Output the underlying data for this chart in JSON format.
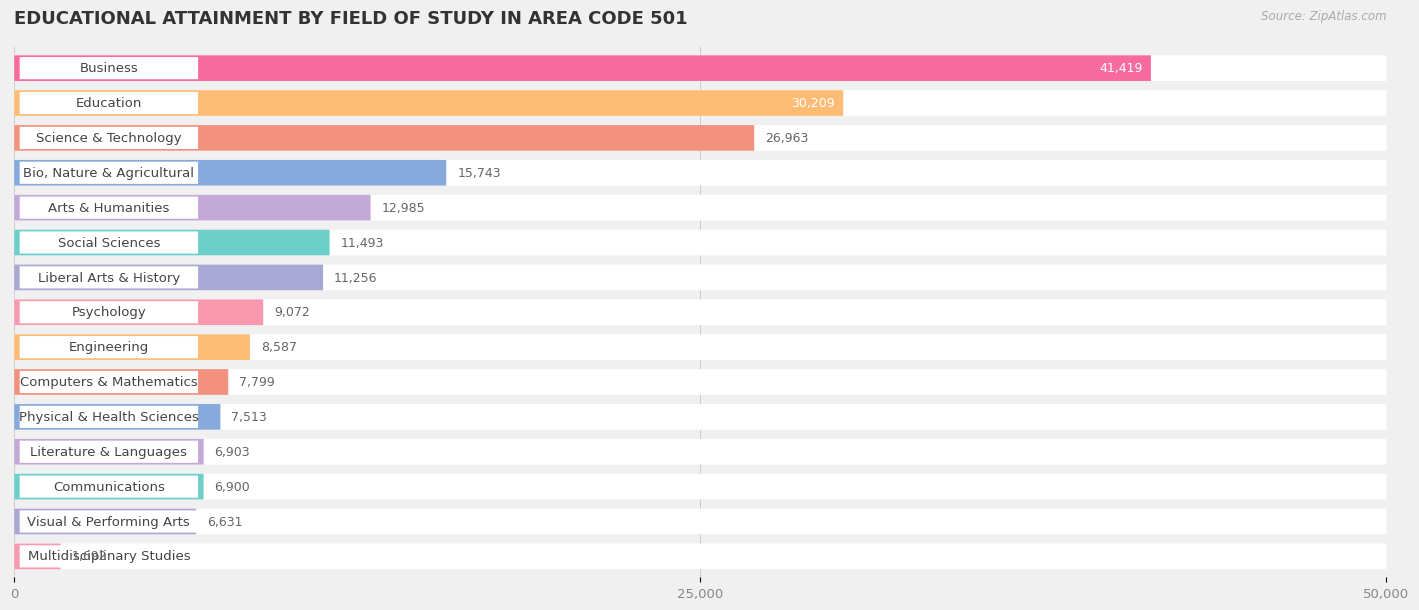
{
  "title": "EDUCATIONAL ATTAINMENT BY FIELD OF STUDY IN AREA CODE 501",
  "source": "Source: ZipAtlas.com",
  "categories": [
    "Business",
    "Education",
    "Science & Technology",
    "Bio, Nature & Agricultural",
    "Arts & Humanities",
    "Social Sciences",
    "Liberal Arts & History",
    "Psychology",
    "Engineering",
    "Computers & Mathematics",
    "Physical & Health Sciences",
    "Literature & Languages",
    "Communications",
    "Visual & Performing Arts",
    "Multidisciplinary Studies"
  ],
  "values": [
    41419,
    30209,
    26963,
    15743,
    12985,
    11493,
    11256,
    9072,
    8587,
    7799,
    7513,
    6903,
    6900,
    6631,
    1692
  ],
  "bar_colors": [
    "#F86B9E",
    "#FDBC74",
    "#F2917D",
    "#85AADB",
    "#C4A8D8",
    "#6ECEC9",
    "#A9A8D4",
    "#F899B0",
    "#FDBC74",
    "#F2917D",
    "#85AADB",
    "#C4A8D8",
    "#6ECEC9",
    "#A9A8D4",
    "#F899B0"
  ],
  "xlim": [
    0,
    50000
  ],
  "xticks": [
    0,
    25000,
    50000
  ],
  "xtick_labels": [
    "0",
    "25,000",
    "50,000"
  ],
  "background_color": "#f0f0f0",
  "bar_row_bg": "#ffffff",
  "title_fontsize": 13,
  "label_fontsize": 9.5,
  "value_fontsize": 9,
  "value_inside_threshold": 28000
}
